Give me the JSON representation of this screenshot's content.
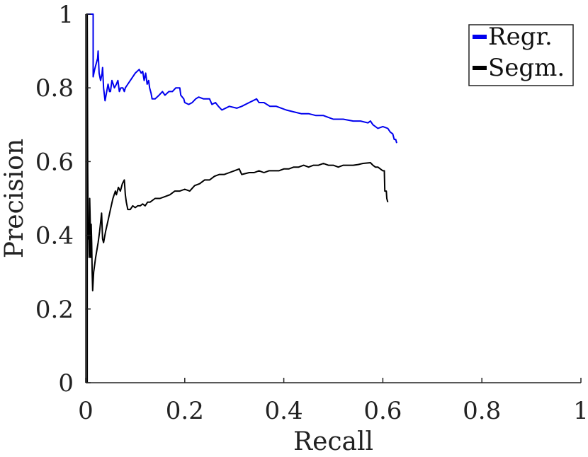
{
  "chart_data": {
    "type": "line",
    "title": "",
    "xlabel": "Recall",
    "ylabel": "Precision",
    "xlim": [
      0,
      1
    ],
    "ylim": [
      0,
      1
    ],
    "x_ticks": [
      0,
      0.2,
      0.4,
      0.6,
      0.8,
      1
    ],
    "x_tick_labels": [
      "0",
      "0.2",
      "0.4",
      "0.6",
      "0.8",
      "1"
    ],
    "y_ticks": [
      0,
      0.2,
      0.4,
      0.6,
      0.8,
      1
    ],
    "y_tick_labels": [
      "0",
      "0.2",
      "0.4",
      "0.6",
      "0.8",
      "1"
    ],
    "grid": false,
    "legend_position": "top-right",
    "series": [
      {
        "name": "Regr.",
        "color": "#0000ee",
        "points": [
          [
            0.003,
            1.0
          ],
          [
            0.015,
            1.0
          ],
          [
            0.015,
            0.83
          ],
          [
            0.018,
            0.85
          ],
          [
            0.02,
            0.86
          ],
          [
            0.024,
            0.88
          ],
          [
            0.025,
            0.9
          ],
          [
            0.027,
            0.84
          ],
          [
            0.03,
            0.82
          ],
          [
            0.033,
            0.84
          ],
          [
            0.034,
            0.855
          ],
          [
            0.036,
            0.8
          ],
          [
            0.039,
            0.765
          ],
          [
            0.041,
            0.78
          ],
          [
            0.045,
            0.81
          ],
          [
            0.048,
            0.79
          ],
          [
            0.05,
            0.79
          ],
          [
            0.053,
            0.82
          ],
          [
            0.058,
            0.8
          ],
          [
            0.062,
            0.81
          ],
          [
            0.065,
            0.82
          ],
          [
            0.068,
            0.79
          ],
          [
            0.071,
            0.8
          ],
          [
            0.075,
            0.8
          ],
          [
            0.078,
            0.79
          ],
          [
            0.08,
            0.8
          ],
          [
            0.085,
            0.81
          ],
          [
            0.09,
            0.82
          ],
          [
            0.1,
            0.84
          ],
          [
            0.108,
            0.85
          ],
          [
            0.112,
            0.84
          ],
          [
            0.115,
            0.845
          ],
          [
            0.118,
            0.82
          ],
          [
            0.121,
            0.84
          ],
          [
            0.124,
            0.81
          ],
          [
            0.127,
            0.82
          ],
          [
            0.129,
            0.8
          ],
          [
            0.132,
            0.785
          ],
          [
            0.134,
            0.77
          ],
          [
            0.14,
            0.77
          ],
          [
            0.148,
            0.78
          ],
          [
            0.155,
            0.79
          ],
          [
            0.16,
            0.78
          ],
          [
            0.168,
            0.79
          ],
          [
            0.175,
            0.79
          ],
          [
            0.182,
            0.8
          ],
          [
            0.19,
            0.8
          ],
          [
            0.192,
            0.78
          ],
          [
            0.198,
            0.77
          ],
          [
            0.2,
            0.76
          ],
          [
            0.208,
            0.755
          ],
          [
            0.215,
            0.76
          ],
          [
            0.222,
            0.77
          ],
          [
            0.228,
            0.775
          ],
          [
            0.238,
            0.77
          ],
          [
            0.25,
            0.77
          ],
          [
            0.255,
            0.755
          ],
          [
            0.262,
            0.76
          ],
          [
            0.268,
            0.75
          ],
          [
            0.275,
            0.74
          ],
          [
            0.29,
            0.75
          ],
          [
            0.305,
            0.745
          ],
          [
            0.315,
            0.75
          ],
          [
            0.33,
            0.76
          ],
          [
            0.345,
            0.77
          ],
          [
            0.35,
            0.76
          ],
          [
            0.36,
            0.76
          ],
          [
            0.372,
            0.75
          ],
          [
            0.385,
            0.75
          ],
          [
            0.395,
            0.745
          ],
          [
            0.405,
            0.74
          ],
          [
            0.42,
            0.735
          ],
          [
            0.435,
            0.73
          ],
          [
            0.45,
            0.73
          ],
          [
            0.465,
            0.725
          ],
          [
            0.48,
            0.725
          ],
          [
            0.49,
            0.72
          ],
          [
            0.5,
            0.715
          ],
          [
            0.52,
            0.715
          ],
          [
            0.54,
            0.71
          ],
          [
            0.555,
            0.71
          ],
          [
            0.57,
            0.705
          ],
          [
            0.575,
            0.71
          ],
          [
            0.58,
            0.7
          ],
          [
            0.59,
            0.69
          ],
          [
            0.6,
            0.695
          ],
          [
            0.61,
            0.69
          ],
          [
            0.615,
            0.68
          ],
          [
            0.62,
            0.675
          ],
          [
            0.623,
            0.66
          ],
          [
            0.626,
            0.66
          ],
          [
            0.628,
            0.65
          ]
        ]
      },
      {
        "name": "Segm.",
        "color": "#000000",
        "points": [
          [
            0.003,
            0.0
          ],
          [
            0.003,
            1.0
          ],
          [
            0.004,
            0.58
          ],
          [
            0.005,
            0.39
          ],
          [
            0.006,
            0.42
          ],
          [
            0.007,
            0.34
          ],
          [
            0.008,
            0.5
          ],
          [
            0.009,
            0.44
          ],
          [
            0.01,
            0.34
          ],
          [
            0.011,
            0.43
          ],
          [
            0.012,
            0.38
          ],
          [
            0.013,
            0.3
          ],
          [
            0.014,
            0.25
          ],
          [
            0.016,
            0.3
          ],
          [
            0.02,
            0.34
          ],
          [
            0.025,
            0.38
          ],
          [
            0.028,
            0.41
          ],
          [
            0.032,
            0.46
          ],
          [
            0.034,
            0.39
          ],
          [
            0.036,
            0.38
          ],
          [
            0.04,
            0.41
          ],
          [
            0.045,
            0.44
          ],
          [
            0.05,
            0.47
          ],
          [
            0.055,
            0.5
          ],
          [
            0.06,
            0.52
          ],
          [
            0.062,
            0.51
          ],
          [
            0.066,
            0.53
          ],
          [
            0.07,
            0.52
          ],
          [
            0.074,
            0.54
          ],
          [
            0.078,
            0.55
          ],
          [
            0.08,
            0.51
          ],
          [
            0.082,
            0.49
          ],
          [
            0.085,
            0.47
          ],
          [
            0.09,
            0.47
          ],
          [
            0.095,
            0.48
          ],
          [
            0.1,
            0.475
          ],
          [
            0.105,
            0.48
          ],
          [
            0.11,
            0.48
          ],
          [
            0.115,
            0.485
          ],
          [
            0.12,
            0.48
          ],
          [
            0.125,
            0.49
          ],
          [
            0.13,
            0.49
          ],
          [
            0.14,
            0.5
          ],
          [
            0.15,
            0.5
          ],
          [
            0.16,
            0.505
          ],
          [
            0.17,
            0.51
          ],
          [
            0.18,
            0.52
          ],
          [
            0.19,
            0.52
          ],
          [
            0.2,
            0.525
          ],
          [
            0.21,
            0.52
          ],
          [
            0.22,
            0.535
          ],
          [
            0.23,
            0.54
          ],
          [
            0.24,
            0.55
          ],
          [
            0.25,
            0.55
          ],
          [
            0.26,
            0.56
          ],
          [
            0.27,
            0.565
          ],
          [
            0.28,
            0.565
          ],
          [
            0.29,
            0.57
          ],
          [
            0.3,
            0.575
          ],
          [
            0.31,
            0.58
          ],
          [
            0.315,
            0.565
          ],
          [
            0.33,
            0.57
          ],
          [
            0.34,
            0.57
          ],
          [
            0.35,
            0.575
          ],
          [
            0.36,
            0.57
          ],
          [
            0.37,
            0.575
          ],
          [
            0.38,
            0.575
          ],
          [
            0.39,
            0.575
          ],
          [
            0.4,
            0.58
          ],
          [
            0.41,
            0.58
          ],
          [
            0.42,
            0.585
          ],
          [
            0.43,
            0.585
          ],
          [
            0.44,
            0.59
          ],
          [
            0.45,
            0.585
          ],
          [
            0.46,
            0.59
          ],
          [
            0.47,
            0.59
          ],
          [
            0.48,
            0.595
          ],
          [
            0.49,
            0.59
          ],
          [
            0.5,
            0.59
          ],
          [
            0.51,
            0.585
          ],
          [
            0.52,
            0.59
          ],
          [
            0.53,
            0.59
          ],
          [
            0.54,
            0.59
          ],
          [
            0.55,
            0.592
          ],
          [
            0.56,
            0.595
          ],
          [
            0.575,
            0.597
          ],
          [
            0.58,
            0.59
          ],
          [
            0.585,
            0.585
          ],
          [
            0.59,
            0.585
          ],
          [
            0.595,
            0.58
          ],
          [
            0.6,
            0.575
          ],
          [
            0.603,
            0.575
          ],
          [
            0.604,
            0.52
          ],
          [
            0.607,
            0.52
          ],
          [
            0.608,
            0.5
          ],
          [
            0.61,
            0.49
          ]
        ]
      }
    ]
  }
}
